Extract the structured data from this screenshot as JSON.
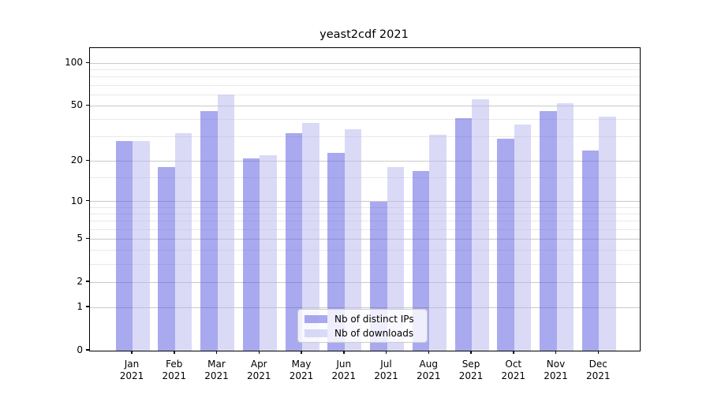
{
  "title": "yeast2cdf 2021",
  "chart_data": {
    "type": "bar",
    "title": "yeast2cdf 2021",
    "scale": "log10(1+x)",
    "categories": [
      "Jan",
      "Feb",
      "Mar",
      "Apr",
      "May",
      "Jun",
      "Jul",
      "Aug",
      "Sep",
      "Oct",
      "Nov",
      "Dec"
    ],
    "year": "2021",
    "series": [
      {
        "name": "Nb of distinct IPs",
        "color": "#5a5ae1",
        "alpha": 0.52,
        "values": [
          28,
          18,
          46,
          21,
          32,
          23,
          10,
          17,
          41,
          29,
          46,
          24
        ]
      },
      {
        "name": "Nb of downloads",
        "color": "#b8b8f0",
        "alpha": 0.52,
        "values": [
          28,
          32,
          60,
          22,
          38,
          34,
          18,
          31,
          56,
          37,
          52,
          42
        ]
      }
    ],
    "y_ticks": [
      0,
      1,
      2,
      5,
      10,
      20,
      50,
      100
    ],
    "y_minor_ticks": [
      3,
      4,
      6,
      7,
      8,
      9,
      15,
      30,
      40,
      60,
      70,
      80,
      90
    ],
    "ylim": [
      0,
      128
    ],
    "xlabel": "",
    "ylabel": "",
    "grid": true,
    "legend_position": "lower center",
    "grid_major_color": "#c9c9c9",
    "grid_minor_color": "#e9e9e9"
  }
}
